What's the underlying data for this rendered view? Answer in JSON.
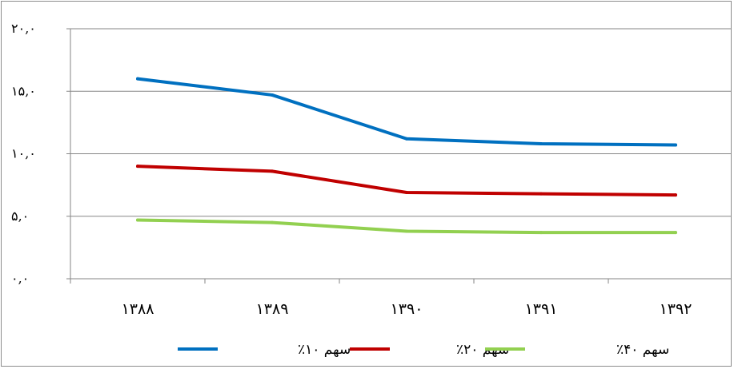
{
  "chart_data": {
    "type": "line",
    "categories": [
      "۱۳۸۸",
      "۱۳۸۹",
      "۱۳۹۰",
      "۱۳۹۱",
      "۱۳۹۲"
    ],
    "y_ticks": [
      {
        "value": 0,
        "label": "۰,۰"
      },
      {
        "value": 5,
        "label": "۵,۰"
      },
      {
        "value": 10,
        "label": "۱۰,۰"
      },
      {
        "value": 15,
        "label": "۱۵,۰"
      },
      {
        "value": 20,
        "label": "۲۰,۰"
      }
    ],
    "ylim": [
      0,
      20
    ],
    "grid": true,
    "legend_position": "bottom",
    "series": [
      {
        "name": "سهم ۱۰٪",
        "color": "#0070C0",
        "values": [
          16.0,
          14.7,
          11.2,
          10.8,
          10.7
        ]
      },
      {
        "name": "سهم ۲۰٪",
        "color": "#C00000",
        "values": [
          9.0,
          8.6,
          6.9,
          6.8,
          6.7
        ]
      },
      {
        "name": "سهم ۴۰٪",
        "color": "#92D050",
        "values": [
          4.7,
          4.5,
          3.8,
          3.7,
          3.7
        ]
      }
    ]
  }
}
